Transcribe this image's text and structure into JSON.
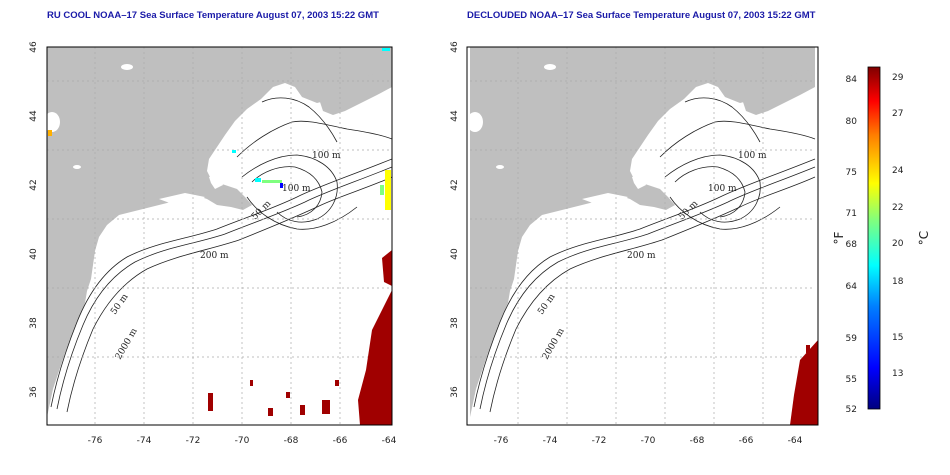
{
  "panels": [
    {
      "id": "left",
      "title": "RU COOL NOAA–17 Sea Surface Temperature August 07, 2003 15:22 GMT",
      "has_data": true
    },
    {
      "id": "right",
      "title": "DECLOUDED NOAA–17 Sea Surface Temperature August 07, 2003 15:22 GMT",
      "has_data": false
    }
  ],
  "axes": {
    "lon_range": [
      -77,
      -63
    ],
    "lat_range": [
      35,
      46
    ],
    "lon_ticks": [
      "-76",
      "-74",
      "-72",
      "-70",
      "-68",
      "-66",
      "-64"
    ],
    "lat_ticks": [
      "36",
      "38",
      "40",
      "42",
      "44",
      "46"
    ],
    "grid": "dotted"
  },
  "contour_labels": {
    "m100": "100 m",
    "m200": "200 m",
    "m50a": "50 m",
    "m50b": "50 m",
    "m2000": "2000 m",
    "m100b": "100 m"
  },
  "colorbar": {
    "unit_f": "°F",
    "unit_c": "°C",
    "fahrenheit_ticks": [
      "84",
      "80",
      "75",
      "71",
      "68",
      "64",
      "59",
      "55",
      "52"
    ],
    "celsius_ticks": [
      "29",
      "27",
      "24",
      "22",
      "20",
      "18",
      "15",
      "13"
    ],
    "colors": [
      "#00007f",
      "#0000ff",
      "#007fff",
      "#00ffff",
      "#7fff7f",
      "#ffff00",
      "#ff7f00",
      "#ff0000",
      "#7f0000"
    ]
  },
  "colors": {
    "land": "#bfbfbf",
    "ocean": "#ffffff",
    "warm_patch": "#a00000",
    "title": "#1a1aa8"
  }
}
